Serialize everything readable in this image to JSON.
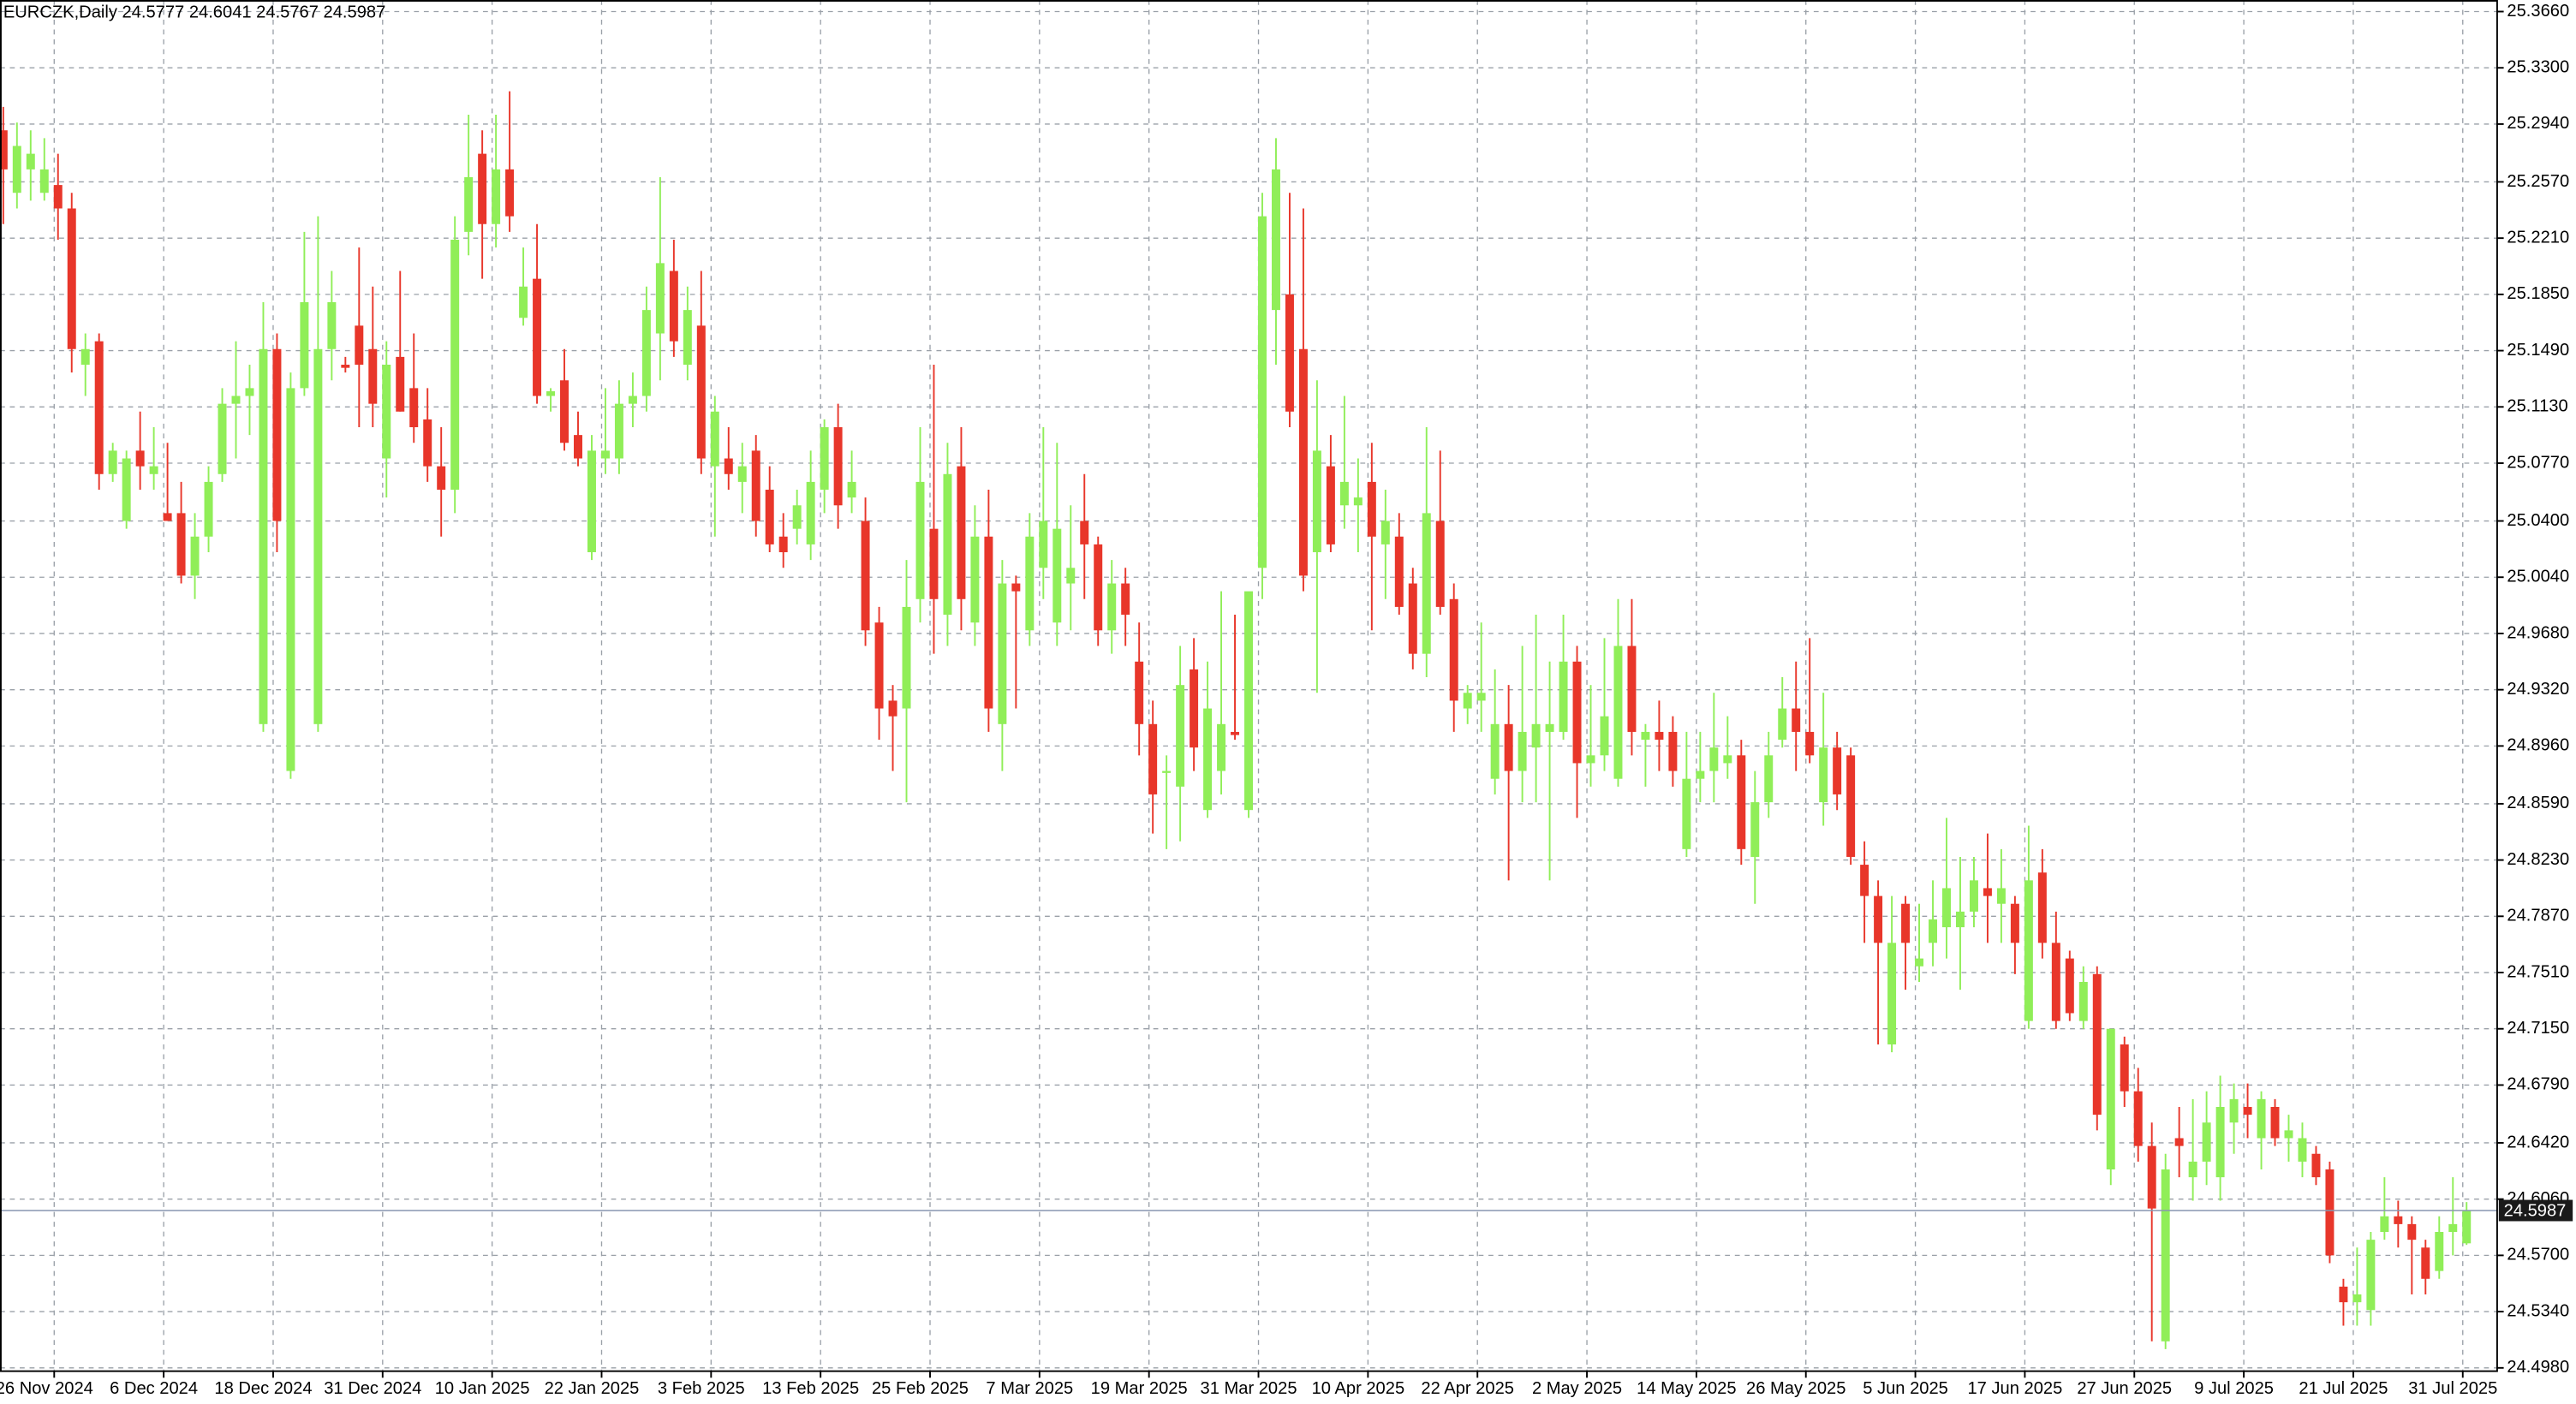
{
  "chart_data": {
    "type": "candlestick",
    "title": "EURCZK,Daily  24.5777 24.6041 24.5767 24.5987",
    "up_color": "#90ee58",
    "down_color": "#e8362a",
    "grid": true,
    "ylim": [
      24.4959,
      25.3734
    ],
    "yticks": [
      {
        "value": 25.366,
        "label": "25.3660"
      },
      {
        "value": 25.33,
        "label": "25.3300"
      },
      {
        "value": 25.294,
        "label": "25.2940"
      },
      {
        "value": 25.257,
        "label": "25.2570"
      },
      {
        "value": 25.221,
        "label": "25.2210"
      },
      {
        "value": 25.185,
        "label": "25.1850"
      },
      {
        "value": 25.149,
        "label": "25.1490"
      },
      {
        "value": 25.113,
        "label": "25.1130"
      },
      {
        "value": 25.077,
        "label": "25.0770"
      },
      {
        "value": 25.04,
        "label": "25.0400"
      },
      {
        "value": 25.004,
        "label": "25.0040"
      },
      {
        "value": 24.968,
        "label": "24.9680"
      },
      {
        "value": 24.932,
        "label": "24.9320"
      },
      {
        "value": 24.896,
        "label": "24.8960"
      },
      {
        "value": 24.859,
        "label": "24.8590"
      },
      {
        "value": 24.823,
        "label": "24.8230"
      },
      {
        "value": 24.787,
        "label": "24.7870"
      },
      {
        "value": 24.751,
        "label": "24.7510"
      },
      {
        "value": 24.715,
        "label": "24.7150"
      },
      {
        "value": 24.679,
        "label": "24.6790"
      },
      {
        "value": 24.642,
        "label": "24.6420"
      },
      {
        "value": 24.606,
        "label": "24.6060"
      },
      {
        "value": 24.57,
        "label": "24.5700"
      },
      {
        "value": 24.534,
        "label": "24.5340"
      },
      {
        "value": 24.498,
        "label": "24.4980"
      }
    ],
    "last_price": 24.5987,
    "categories": [
      null,
      null,
      null,
      "26 Nov 2024",
      null,
      null,
      null,
      null,
      null,
      null,
      null,
      "6 Dec 2024",
      null,
      null,
      null,
      null,
      null,
      null,
      null,
      "18 Dec 2024",
      null,
      null,
      null,
      null,
      null,
      null,
      null,
      "31 Dec 2024",
      null,
      null,
      null,
      null,
      null,
      null,
      null,
      "10 Jan 2025",
      null,
      null,
      null,
      null,
      null,
      null,
      null,
      "22 Jan 2025",
      null,
      null,
      null,
      null,
      null,
      null,
      null,
      "3 Feb 2025",
      null,
      null,
      null,
      null,
      null,
      null,
      null,
      "13 Feb 2025",
      null,
      null,
      null,
      null,
      null,
      null,
      null,
      "25 Feb 2025",
      null,
      null,
      null,
      null,
      null,
      null,
      null,
      "7 Mar 2025",
      null,
      null,
      null,
      null,
      null,
      null,
      null,
      "19 Mar 2025",
      null,
      null,
      null,
      null,
      null,
      null,
      null,
      "31 Mar 2025",
      null,
      null,
      null,
      null,
      null,
      null,
      null,
      "10 Apr 2025",
      null,
      null,
      null,
      null,
      null,
      null,
      null,
      "22 Apr 2025",
      null,
      null,
      null,
      null,
      null,
      null,
      null,
      "2 May 2025",
      null,
      null,
      null,
      null,
      null,
      null,
      null,
      "14 May 2025",
      null,
      null,
      null,
      null,
      null,
      null,
      null,
      "26 May 2025",
      null,
      null,
      null,
      null,
      null,
      null,
      null,
      "5 Jun 2025",
      null,
      null,
      null,
      null,
      null,
      null,
      null,
      "17 Jun 2025",
      null,
      null,
      null,
      null,
      null,
      null,
      null,
      "27 Jun 2025",
      null,
      null,
      null,
      null,
      null,
      null,
      null,
      "9 Jul 2025",
      null,
      null,
      null,
      null,
      null,
      null,
      null,
      "21 Jul 2025",
      null,
      null,
      null,
      null,
      null,
      null,
      null,
      "31 Jul 2025",
      null
    ],
    "ohlc": [
      [
        25.29,
        25.305,
        25.23,
        25.265
      ],
      [
        25.25,
        25.295,
        25.24,
        25.28
      ],
      [
        25.265,
        25.29,
        25.245,
        25.275
      ],
      [
        25.25,
        25.285,
        25.245,
        25.265
      ],
      [
        25.255,
        25.275,
        25.22,
        25.24
      ],
      [
        25.24,
        25.25,
        25.135,
        25.15
      ],
      [
        25.14,
        25.16,
        25.12,
        25.15
      ],
      [
        25.155,
        25.16,
        25.06,
        25.07
      ],
      [
        25.07,
        25.09,
        25.065,
        25.085
      ],
      [
        25.04,
        25.085,
        25.035,
        25.08
      ],
      [
        25.085,
        25.11,
        25.06,
        25.075
      ],
      [
        25.07,
        25.1,
        25.06,
        25.075
      ],
      [
        25.045,
        25.09,
        25.04,
        25.04
      ],
      [
        25.045,
        25.065,
        25.0,
        25.005
      ],
      [
        25.005,
        25.045,
        24.99,
        25.03
      ],
      [
        25.03,
        25.075,
        25.02,
        25.065
      ],
      [
        25.07,
        25.125,
        25.065,
        25.115
      ],
      [
        25.115,
        25.155,
        25.08,
        25.12
      ],
      [
        25.12,
        25.14,
        25.095,
        25.125
      ],
      [
        24.91,
        25.18,
        24.905,
        25.15
      ],
      [
        25.15,
        25.16,
        25.02,
        25.04
      ],
      [
        24.88,
        25.135,
        24.875,
        25.125
      ],
      [
        25.125,
        25.225,
        25.12,
        25.18
      ],
      [
        24.91,
        25.235,
        24.905,
        25.15
      ],
      [
        25.15,
        25.2,
        25.13,
        25.18
      ],
      [
        25.14,
        25.145,
        25.135,
        25.138
      ],
      [
        25.165,
        25.215,
        25.1,
        25.14
      ],
      [
        25.15,
        25.19,
        25.1,
        25.115
      ],
      [
        25.08,
        25.155,
        25.055,
        25.14
      ],
      [
        25.145,
        25.2,
        25.11,
        25.11
      ],
      [
        25.125,
        25.16,
        25.09,
        25.1
      ],
      [
        25.105,
        25.125,
        25.065,
        25.075
      ],
      [
        25.075,
        25.1,
        25.03,
        25.06
      ],
      [
        25.06,
        25.235,
        25.045,
        25.22
      ],
      [
        25.225,
        25.3,
        25.21,
        25.26
      ],
      [
        25.275,
        25.29,
        25.195,
        25.23
      ],
      [
        25.23,
        25.3,
        25.215,
        25.265
      ],
      [
        25.265,
        25.315,
        25.225,
        25.235
      ],
      [
        25.17,
        25.215,
        25.165,
        25.19
      ],
      [
        25.195,
        25.23,
        25.115,
        25.12
      ],
      [
        25.12,
        25.125,
        25.11,
        25.123
      ],
      [
        25.13,
        25.15,
        25.085,
        25.09
      ],
      [
        25.095,
        25.11,
        25.075,
        25.08
      ],
      [
        25.02,
        25.095,
        25.015,
        25.085
      ],
      [
        25.08,
        25.125,
        25.07,
        25.085
      ],
      [
        25.08,
        25.13,
        25.07,
        25.115
      ],
      [
        25.115,
        25.135,
        25.1,
        25.12
      ],
      [
        25.12,
        25.19,
        25.11,
        25.175
      ],
      [
        25.16,
        25.26,
        25.13,
        25.205
      ],
      [
        25.2,
        25.22,
        25.145,
        25.155
      ],
      [
        25.14,
        25.19,
        25.13,
        25.175
      ],
      [
        25.165,
        25.2,
        25.07,
        25.08
      ],
      [
        25.075,
        25.12,
        25.03,
        25.11
      ],
      [
        25.08,
        25.1,
        25.06,
        25.07
      ],
      [
        25.065,
        25.09,
        25.045,
        25.075
      ],
      [
        25.085,
        25.095,
        25.03,
        25.04
      ],
      [
        25.06,
        25.075,
        25.02,
        25.025
      ],
      [
        25.03,
        25.045,
        25.01,
        25.02
      ],
      [
        25.035,
        25.06,
        25.025,
        25.05
      ],
      [
        25.025,
        25.085,
        25.015,
        25.065
      ],
      [
        25.06,
        25.105,
        25.045,
        25.1
      ],
      [
        25.1,
        25.115,
        25.035,
        25.05
      ],
      [
        25.055,
        25.085,
        25.045,
        25.065
      ],
      [
        25.04,
        25.055,
        24.96,
        24.97
      ],
      [
        24.975,
        24.985,
        24.9,
        24.92
      ],
      [
        24.925,
        24.935,
        24.88,
        24.915
      ],
      [
        24.92,
        25.015,
        24.86,
        24.985
      ],
      [
        24.99,
        25.1,
        24.975,
        25.065
      ],
      [
        25.035,
        25.14,
        24.955,
        24.99
      ],
      [
        24.98,
        25.09,
        24.96,
        25.07
      ],
      [
        25.075,
        25.1,
        24.97,
        24.99
      ],
      [
        24.975,
        25.05,
        24.96,
        25.03
      ],
      [
        25.03,
        25.06,
        24.905,
        24.92
      ],
      [
        24.91,
        25.015,
        24.88,
        25.0
      ],
      [
        25.0,
        25.005,
        24.92,
        24.995
      ],
      [
        24.97,
        25.045,
        24.96,
        25.03
      ],
      [
        25.01,
        25.1,
        24.99,
        25.04
      ],
      [
        24.975,
        25.09,
        24.96,
        25.035
      ],
      [
        25.0,
        25.05,
        24.97,
        25.01
      ],
      [
        25.04,
        25.07,
        24.99,
        25.025
      ],
      [
        25.025,
        25.03,
        24.96,
        24.97
      ],
      [
        24.97,
        25.015,
        24.955,
        25.0
      ],
      [
        25.0,
        25.01,
        24.96,
        24.98
      ],
      [
        24.95,
        24.975,
        24.89,
        24.91
      ],
      [
        24.91,
        24.925,
        24.84,
        24.865
      ],
      [
        24.88,
        24.89,
        24.83,
        24.88
      ],
      [
        24.87,
        24.96,
        24.835,
        24.935
      ],
      [
        24.945,
        24.965,
        24.88,
        24.895
      ],
      [
        24.855,
        24.95,
        24.85,
        24.92
      ],
      [
        24.88,
        24.995,
        24.865,
        24.91
      ],
      [
        24.905,
        24.98,
        24.9,
        24.903
      ],
      [
        24.855,
        24.99,
        24.85,
        24.995
      ],
      [
        25.01,
        25.25,
        24.99,
        25.235
      ],
      [
        25.175,
        25.285,
        25.14,
        25.265
      ],
      [
        25.185,
        25.25,
        25.1,
        25.11
      ],
      [
        25.15,
        25.24,
        24.995,
        25.005
      ],
      [
        25.02,
        25.13,
        24.93,
        25.085
      ],
      [
        25.075,
        25.095,
        25.02,
        25.025
      ],
      [
        25.05,
        25.12,
        25.035,
        25.065
      ],
      [
        25.05,
        25.08,
        25.02,
        25.055
      ],
      [
        25.065,
        25.09,
        24.97,
        25.03
      ],
      [
        25.025,
        25.06,
        24.99,
        25.04
      ],
      [
        25.03,
        25.045,
        24.98,
        24.985
      ],
      [
        25.0,
        25.01,
        24.945,
        24.955
      ],
      [
        24.955,
        25.1,
        24.94,
        25.045
      ],
      [
        25.04,
        25.085,
        24.98,
        24.985
      ],
      [
        24.99,
        25.0,
        24.905,
        24.925
      ],
      [
        24.92,
        24.935,
        24.91,
        24.93
      ],
      [
        24.925,
        24.975,
        24.905,
        24.93
      ],
      [
        24.875,
        24.945,
        24.865,
        24.91
      ],
      [
        24.91,
        24.935,
        24.81,
        24.88
      ],
      [
        24.88,
        24.96,
        24.86,
        24.905
      ],
      [
        24.895,
        24.98,
        24.86,
        24.91
      ],
      [
        24.905,
        24.95,
        24.81,
        24.91
      ],
      [
        24.905,
        24.98,
        24.9,
        24.95
      ],
      [
        24.95,
        24.96,
        24.85,
        24.885
      ],
      [
        24.885,
        24.935,
        24.87,
        24.89
      ],
      [
        24.89,
        24.965,
        24.88,
        24.915
      ],
      [
        24.875,
        24.99,
        24.87,
        24.96
      ],
      [
        24.96,
        24.99,
        24.89,
        24.905
      ],
      [
        24.9,
        24.91,
        24.87,
        24.905
      ],
      [
        24.905,
        24.925,
        24.88,
        24.9
      ],
      [
        24.905,
        24.915,
        24.87,
        24.88
      ],
      [
        24.83,
        24.905,
        24.825,
        24.875
      ],
      [
        24.875,
        24.905,
        24.86,
        24.88
      ],
      [
        24.88,
        24.93,
        24.86,
        24.895
      ],
      [
        24.885,
        24.915,
        24.875,
        24.89
      ],
      [
        24.89,
        24.9,
        24.82,
        24.83
      ],
      [
        24.825,
        24.88,
        24.795,
        24.86
      ],
      [
        24.86,
        24.905,
        24.85,
        24.89
      ],
      [
        24.9,
        24.94,
        24.895,
        24.92
      ],
      [
        24.92,
        24.95,
        24.88,
        24.905
      ],
      [
        24.905,
        24.965,
        24.885,
        24.89
      ],
      [
        24.86,
        24.93,
        24.845,
        24.895
      ],
      [
        24.895,
        24.905,
        24.855,
        24.865
      ],
      [
        24.89,
        24.895,
        24.82,
        24.825
      ],
      [
        24.82,
        24.835,
        24.77,
        24.8
      ],
      [
        24.8,
        24.81,
        24.705,
        24.77
      ],
      [
        24.705,
        24.8,
        24.7,
        24.77
      ],
      [
        24.795,
        24.8,
        24.74,
        24.77
      ],
      [
        24.755,
        24.795,
        24.745,
        24.76
      ],
      [
        24.77,
        24.81,
        24.755,
        24.785
      ],
      [
        24.78,
        24.85,
        24.76,
        24.805
      ],
      [
        24.78,
        24.825,
        24.74,
        24.79
      ],
      [
        24.79,
        24.825,
        24.78,
        24.81
      ],
      [
        24.805,
        24.84,
        24.77,
        24.8
      ],
      [
        24.795,
        24.83,
        24.77,
        24.805
      ],
      [
        24.795,
        24.8,
        24.75,
        24.77
      ],
      [
        24.72,
        24.845,
        24.715,
        24.81
      ],
      [
        24.815,
        24.83,
        24.76,
        24.77
      ],
      [
        24.77,
        24.79,
        24.715,
        24.72
      ],
      [
        24.76,
        24.765,
        24.72,
        24.725
      ],
      [
        24.72,
        24.755,
        24.715,
        24.745
      ],
      [
        24.75,
        24.755,
        24.65,
        24.66
      ],
      [
        24.625,
        24.715,
        24.615,
        24.715
      ],
      [
        24.705,
        24.71,
        24.665,
        24.675
      ],
      [
        24.675,
        24.69,
        24.63,
        24.64
      ],
      [
        24.64,
        24.655,
        24.515,
        24.6
      ],
      [
        24.515,
        24.635,
        24.51,
        24.625
      ],
      [
        24.645,
        24.665,
        24.62,
        24.64
      ],
      [
        24.62,
        24.67,
        24.605,
        24.63
      ],
      [
        24.63,
        24.675,
        24.615,
        24.655
      ],
      [
        24.62,
        24.685,
        24.605,
        24.665
      ],
      [
        24.655,
        24.68,
        24.635,
        24.67
      ],
      [
        24.665,
        24.68,
        24.645,
        24.66
      ],
      [
        24.645,
        24.675,
        24.625,
        24.67
      ],
      [
        24.665,
        24.67,
        24.64,
        24.645
      ],
      [
        24.645,
        24.66,
        24.63,
        24.65
      ],
      [
        24.63,
        24.655,
        24.62,
        24.645
      ],
      [
        24.635,
        24.64,
        24.615,
        24.62
      ],
      [
        24.625,
        24.63,
        24.565,
        24.57
      ],
      [
        24.55,
        24.555,
        24.525,
        24.54
      ],
      [
        24.54,
        24.575,
        24.525,
        24.545
      ],
      [
        24.535,
        24.585,
        24.525,
        24.58
      ],
      [
        24.585,
        24.62,
        24.58,
        24.595
      ],
      [
        24.595,
        24.605,
        24.575,
        24.59
      ],
      [
        24.59,
        24.595,
        24.545,
        24.58
      ],
      [
        24.575,
        24.58,
        24.545,
        24.555
      ],
      [
        24.56,
        24.595,
        24.555,
        24.585
      ],
      [
        24.585,
        24.62,
        24.57,
        24.59
      ],
      [
        24.5777,
        24.6041,
        24.5767,
        24.5987
      ]
    ]
  }
}
